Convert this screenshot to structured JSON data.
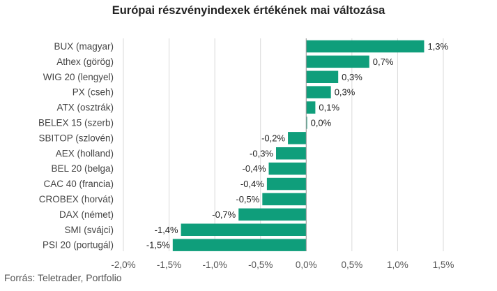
{
  "header": {
    "title": "Európai részvényindexek értékének mai változása"
  },
  "footer": {
    "source": "Forrás: Teletrader, Portfolio"
  },
  "colors": {
    "bar": "#0f9e7b",
    "grid": "#d9d9d9",
    "axis": "#999999"
  },
  "chart_data": {
    "type": "bar",
    "orientation": "horizontal",
    "title": "Európai részvényindexek értékének mai változása",
    "categories": [
      "BUX (magyar)",
      "Athex (görög)",
      "WIG 20 (lengyel)",
      "PX (cseh)",
      "ATX (osztrák)",
      "BELEX 15 (szerb)",
      "SBITOP (szlovén)",
      "AEX (holland)",
      "BEL 20 (belga)",
      "CAC 40 (francia)",
      "CROBEX (horvát)",
      "DAX (német)",
      "SMI (svájci)",
      "PSI 20 (portugál)"
    ],
    "values": [
      1.29,
      0.69,
      0.35,
      0.27,
      0.1,
      0.01,
      -0.2,
      -0.33,
      -0.41,
      -0.43,
      -0.48,
      -0.74,
      -1.37,
      -1.46
    ],
    "data_labels": [
      "1,3%",
      "0,7%",
      "0,3%",
      "0,3%",
      "0,1%",
      "0,0%",
      "-0,2%",
      "-0,3%",
      "-0,4%",
      "-0,4%",
      "-0,5%",
      "-0,7%",
      "-1,4%",
      "-1,5%"
    ],
    "xlim": [
      -2.0,
      1.5
    ],
    "xticks": [
      -2.0,
      -1.5,
      -1.0,
      -0.5,
      0.0,
      0.5,
      1.0,
      1.5
    ],
    "xtick_labels": [
      "-2,0%",
      "-1,5%",
      "-1,0%",
      "-0,5%",
      "0,0%",
      "0,5%",
      "1,0%",
      "1,5%"
    ],
    "grid": true,
    "legend": "none"
  }
}
